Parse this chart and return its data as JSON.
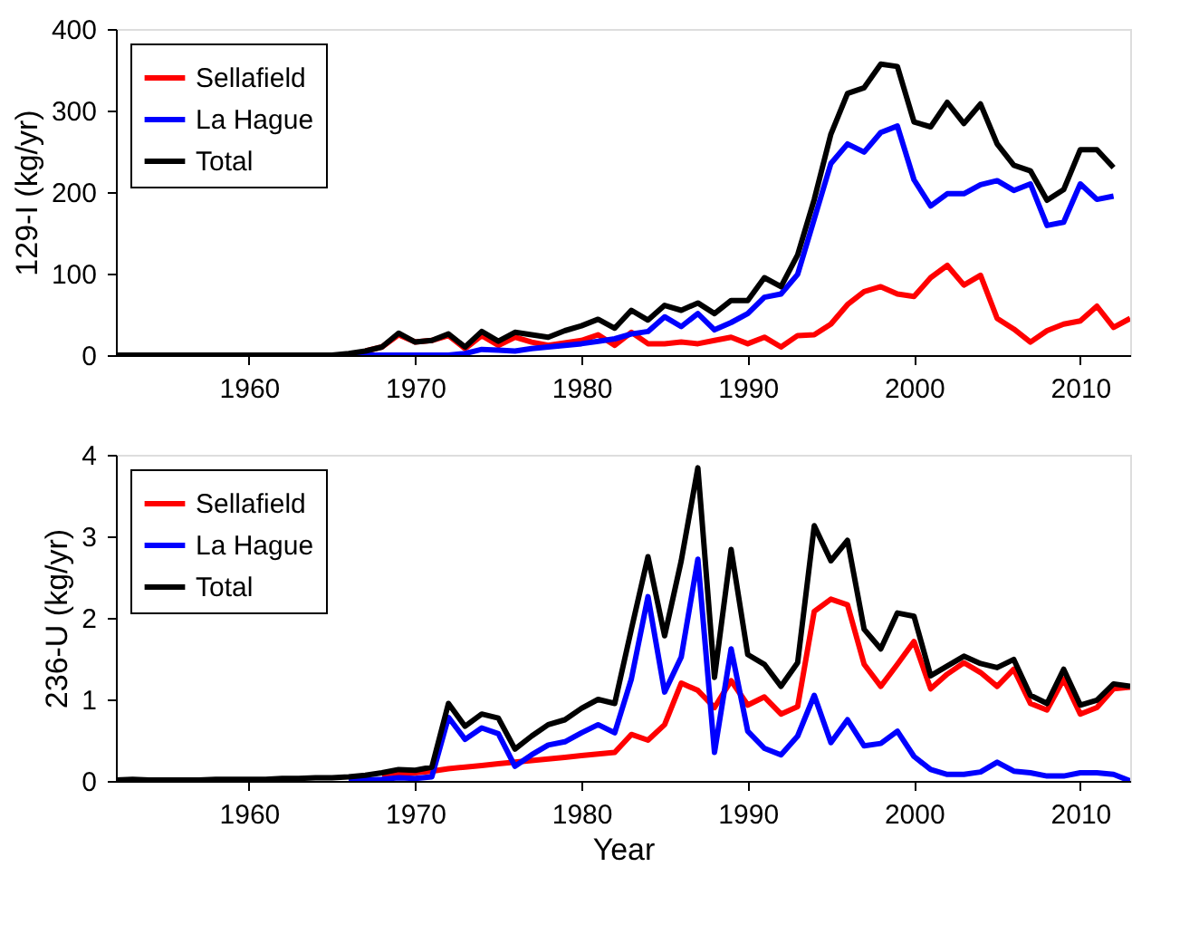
{
  "chart_data": [
    {
      "type": "line",
      "ylabel": "129-I (kg/yr)",
      "x": [
        1952,
        1953,
        1954,
        1955,
        1956,
        1957,
        1958,
        1959,
        1960,
        1961,
        1962,
        1963,
        1964,
        1965,
        1966,
        1967,
        1968,
        1969,
        1970,
        1971,
        1972,
        1973,
        1974,
        1975,
        1976,
        1977,
        1978,
        1979,
        1980,
        1981,
        1982,
        1983,
        1984,
        1985,
        1986,
        1987,
        1988,
        1989,
        1990,
        1991,
        1992,
        1993,
        1994,
        1995,
        1996,
        1997,
        1998,
        1999,
        2000,
        2001,
        2002,
        2003,
        2004,
        2005,
        2006,
        2007,
        2008,
        2009,
        2010,
        2011,
        2012,
        2013
      ],
      "series": [
        {
          "name": "Sellafield",
          "color": "#ff0000",
          "values": [
            null,
            null,
            null,
            null,
            null,
            null,
            null,
            null,
            null,
            null,
            null,
            null,
            null,
            null,
            null,
            5,
            10,
            25,
            16,
            18,
            24,
            8,
            24,
            12,
            22,
            16,
            12,
            15,
            18,
            25,
            12,
            28,
            14,
            14,
            16,
            14,
            18,
            22,
            14,
            22,
            10,
            24,
            25,
            38,
            62,
            78,
            84,
            75,
            72,
            95,
            110,
            86,
            98,
            45,
            32,
            16,
            30,
            38,
            42,
            60,
            34,
            45
          ]
        },
        {
          "name": "La Hague",
          "color": "#0000ff",
          "values": [
            null,
            null,
            null,
            null,
            null,
            null,
            null,
            null,
            null,
            null,
            null,
            null,
            null,
            0,
            0,
            0,
            0,
            0,
            0,
            0,
            0,
            2,
            7,
            6,
            5,
            8,
            10,
            12,
            14,
            17,
            20,
            26,
            29,
            47,
            35,
            51,
            31,
            40,
            51,
            71,
            75,
            99,
            167,
            235,
            259,
            249,
            273,
            281,
            215,
            183,
            198,
            198,
            209,
            214,
            202,
            210,
            159,
            163,
            210,
            191,
            195,
            null
          ]
        },
        {
          "name": "Total",
          "color": "#000000",
          "values": [
            0,
            0,
            0,
            0,
            0,
            0,
            0,
            0,
            0,
            0,
            0,
            0,
            0,
            0,
            2,
            5,
            10,
            27,
            16,
            18,
            26,
            10,
            29,
            17,
            28,
            25,
            22,
            30,
            36,
            44,
            33,
            55,
            43,
            61,
            55,
            64,
            51,
            67,
            67,
            95,
            84,
            123,
            191,
            271,
            321,
            328,
            357,
            354,
            286,
            280,
            310,
            284,
            308,
            259,
            233,
            226,
            190,
            203,
            252,
            252,
            230,
            null
          ]
        }
      ],
      "xlim": [
        1952,
        2013
      ],
      "xticks": [
        1960,
        1970,
        1980,
        1990,
        2000,
        2010
      ],
      "ylim": [
        0,
        400
      ],
      "yticks": [
        0,
        100,
        200,
        300,
        400
      ],
      "grid": false,
      "legend": "top left",
      "line_style": "solid",
      "marker": "none"
    },
    {
      "type": "line",
      "xlabel": "Year",
      "ylabel": "236-U (kg/yr)",
      "x": [
        1952,
        1953,
        1954,
        1955,
        1956,
        1957,
        1958,
        1959,
        1960,
        1961,
        1962,
        1963,
        1964,
        1965,
        1966,
        1967,
        1968,
        1969,
        1970,
        1971,
        1972,
        1973,
        1974,
        1975,
        1976,
        1977,
        1978,
        1979,
        1980,
        1981,
        1982,
        1983,
        1984,
        1985,
        1986,
        1987,
        1988,
        1989,
        1990,
        1991,
        1992,
        1993,
        1994,
        1995,
        1996,
        1997,
        1998,
        1999,
        2000,
        2001,
        2002,
        2003,
        2004,
        2005,
        2006,
        2007,
        2008,
        2009,
        2010,
        2011,
        2012,
        2013
      ],
      "series": [
        {
          "name": "Sellafield",
          "color": "#ff0000",
          "values": [
            null,
            null,
            null,
            null,
            null,
            null,
            null,
            null,
            null,
            null,
            null,
            null,
            null,
            null,
            null,
            null,
            0.08,
            0.1,
            0.1,
            0.12,
            0.15,
            0.17,
            0.19,
            0.21,
            0.23,
            0.25,
            0.27,
            0.29,
            0.31,
            0.33,
            0.35,
            0.57,
            0.5,
            0.69,
            1.2,
            1.11,
            0.9,
            1.23,
            0.93,
            1.03,
            0.82,
            0.91,
            2.08,
            2.23,
            2.16,
            1.43,
            1.16,
            1.43,
            1.71,
            1.13,
            1.31,
            1.45,
            1.33,
            1.16,
            1.37,
            0.95,
            0.87,
            1.25,
            0.82,
            0.9,
            1.13,
            1.15
          ]
        },
        {
          "name": "La Hague",
          "color": "#0000ff",
          "values": [
            null,
            null,
            null,
            null,
            null,
            null,
            null,
            null,
            null,
            null,
            null,
            null,
            null,
            null,
            0,
            0.01,
            0.02,
            0.04,
            0.03,
            0.05,
            0.78,
            0.51,
            0.65,
            0.58,
            0.18,
            0.32,
            0.44,
            0.48,
            0.59,
            0.69,
            0.59,
            1.25,
            2.26,
            1.09,
            1.52,
            2.72,
            0.35,
            1.62,
            0.61,
            0.4,
            0.32,
            0.55,
            1.05,
            0.47,
            0.75,
            0.43,
            0.46,
            0.61,
            0.3,
            0.14,
            0.08,
            0.08,
            0.11,
            0.23,
            0.12,
            0.1,
            0.06,
            0.06,
            0.1,
            0.1,
            0.08,
            0
          ]
        },
        {
          "name": "Total",
          "color": "#000000",
          "values": [
            0.01,
            0.02,
            0.01,
            0.01,
            0.01,
            0.01,
            0.02,
            0.02,
            0.02,
            0.02,
            0.03,
            0.03,
            0.04,
            0.04,
            0.05,
            0.07,
            0.1,
            0.14,
            0.13,
            0.17,
            0.95,
            0.67,
            0.82,
            0.77,
            0.39,
            0.55,
            0.69,
            0.75,
            0.89,
            1.0,
            0.95,
            1.86,
            2.75,
            1.78,
            2.7,
            3.84,
            1.27,
            2.84,
            1.55,
            1.43,
            1.16,
            1.45,
            3.13,
            2.7,
            2.95,
            1.86,
            1.62,
            2.06,
            2.02,
            1.29,
            1.41,
            1.53,
            1.44,
            1.39,
            1.49,
            1.05,
            0.95,
            1.37,
            0.93,
            0.99,
            1.19,
            1.16
          ]
        }
      ],
      "xlim": [
        1952,
        2013
      ],
      "xticks": [
        1960,
        1970,
        1980,
        1990,
        2000,
        2010
      ],
      "ylim": [
        0,
        4
      ],
      "yticks": [
        0,
        1,
        2,
        3,
        4
      ],
      "grid": false,
      "legend": "top left",
      "line_style": "solid",
      "marker": "none"
    }
  ]
}
